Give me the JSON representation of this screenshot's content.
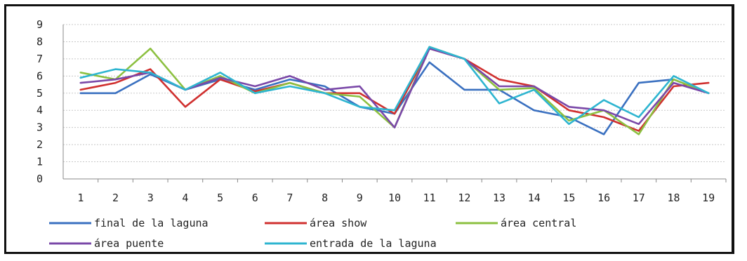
{
  "chart_data": {
    "type": "line",
    "categories": [
      "1",
      "2",
      "3",
      "4",
      "5",
      "6",
      "7",
      "8",
      "9",
      "10",
      "11",
      "12",
      "13",
      "14",
      "15",
      "16",
      "17",
      "18",
      "19"
    ],
    "ylim": [
      0,
      9
    ],
    "yticks": [
      "0",
      "1",
      "2",
      "3",
      "4",
      "5",
      "6",
      "7",
      "8",
      "9"
    ],
    "grid": true,
    "legend_position": "bottom",
    "series": [
      {
        "name": "final de la laguna",
        "color": "#3a70c0",
        "values": [
          5.0,
          5.0,
          6.1,
          5.2,
          5.8,
          5.2,
          5.8,
          5.4,
          4.2,
          3.8,
          6.8,
          5.2,
          5.2,
          4.0,
          3.6,
          2.6,
          5.6,
          5.8,
          5.0
        ]
      },
      {
        "name": "área show",
        "color": "#d0302f",
        "values": [
          5.2,
          5.6,
          6.4,
          4.2,
          5.8,
          5.1,
          5.6,
          5.0,
          5.0,
          3.8,
          7.6,
          7.0,
          5.8,
          5.4,
          4.0,
          3.6,
          2.8,
          5.4,
          5.6
        ]
      },
      {
        "name": "área central",
        "color": "#8cc040",
        "values": [
          6.2,
          5.8,
          7.6,
          5.2,
          6.0,
          5.0,
          5.6,
          5.0,
          4.8,
          3.0,
          7.7,
          7.0,
          5.2,
          5.3,
          3.4,
          4.0,
          2.6,
          5.8,
          5.0
        ]
      },
      {
        "name": "área puente",
        "color": "#7a48a8",
        "values": [
          5.6,
          5.8,
          6.2,
          5.2,
          5.9,
          5.4,
          6.0,
          5.2,
          5.4,
          3.0,
          7.6,
          7.0,
          5.4,
          5.4,
          4.2,
          4.0,
          3.2,
          5.6,
          5.0
        ]
      },
      {
        "name": "entrada de la laguna",
        "color": "#2eb5d0",
        "values": [
          5.9,
          6.4,
          6.2,
          5.2,
          6.2,
          5.0,
          5.4,
          5.0,
          4.2,
          4.0,
          7.7,
          7.0,
          4.4,
          5.2,
          3.2,
          4.6,
          3.6,
          6.0,
          5.0
        ]
      }
    ]
  }
}
